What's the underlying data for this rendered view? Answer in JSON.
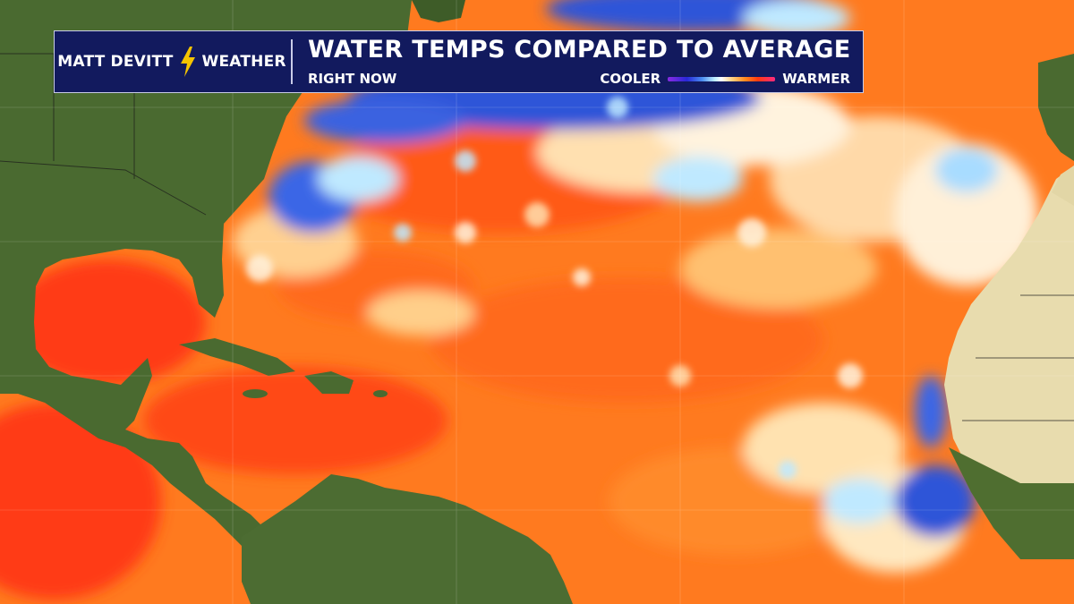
{
  "brand": {
    "name_left": "MATT DEVITT",
    "name_right": "WEATHER",
    "icon": "lightning-bolt-icon",
    "bolt_color": "#f5c400"
  },
  "header": {
    "title": "WATER TEMPS COMPARED TO AVERAGE",
    "subtitle": "RIGHT NOW",
    "background": "#121a5e"
  },
  "legend": {
    "low_label": "COOLER",
    "high_label": "WARMER",
    "colors": [
      "#8a2be2",
      "#2828d8",
      "#4a8cf0",
      "#bfefff",
      "#ffffff",
      "#ffd080",
      "#ff8a20",
      "#ff3a10",
      "#ff2a80"
    ]
  },
  "map_colors": {
    "land": "#4a6a30",
    "desert": "#e8dcae",
    "ocean_warm": "#ff7a1f",
    "ocean_hot": "#ff3b12",
    "ocean_mild": "#ffd090",
    "ocean_cool": "#bfe9ff",
    "ocean_cold": "#2f55d8"
  }
}
